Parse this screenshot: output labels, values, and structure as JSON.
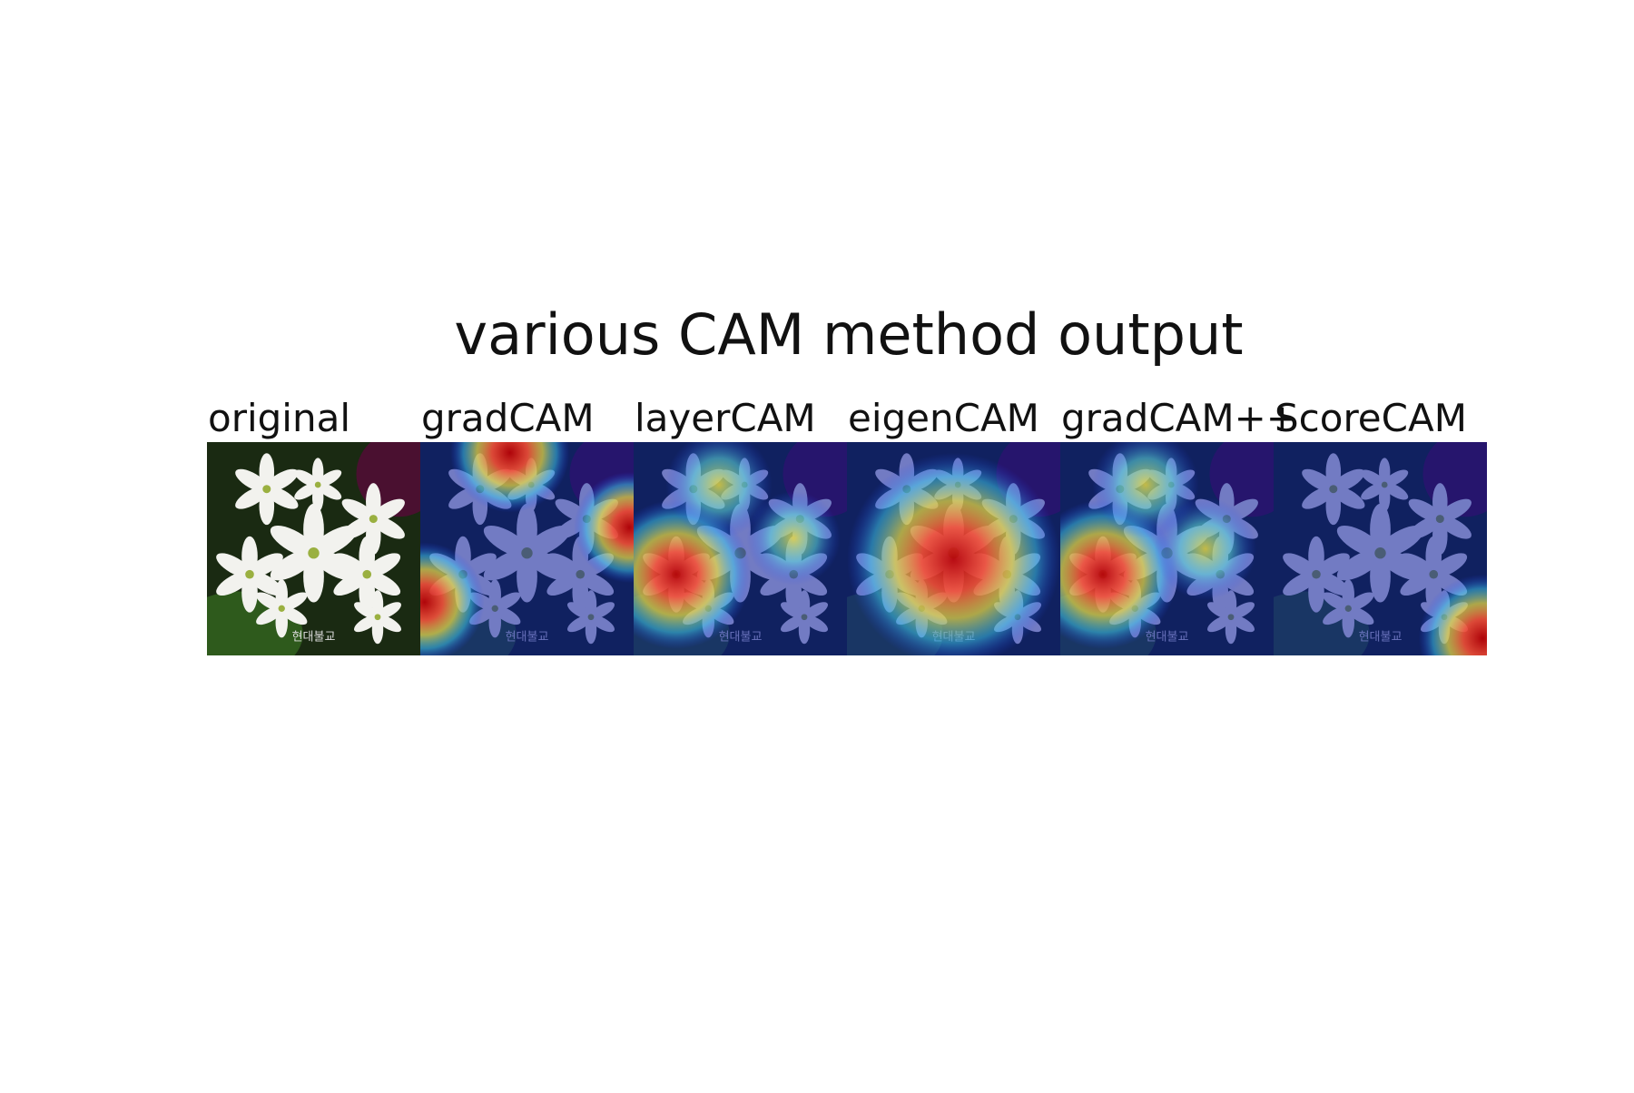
{
  "title": "various CAM method output",
  "watermark": "현대불교",
  "panels": [
    {
      "label": "original"
    },
    {
      "label": "gradCAM"
    },
    {
      "label": "layerCAM"
    },
    {
      "label": "eigenCAM"
    },
    {
      "label": "gradCAM++"
    },
    {
      "label": "ScoreCAM"
    }
  ]
}
